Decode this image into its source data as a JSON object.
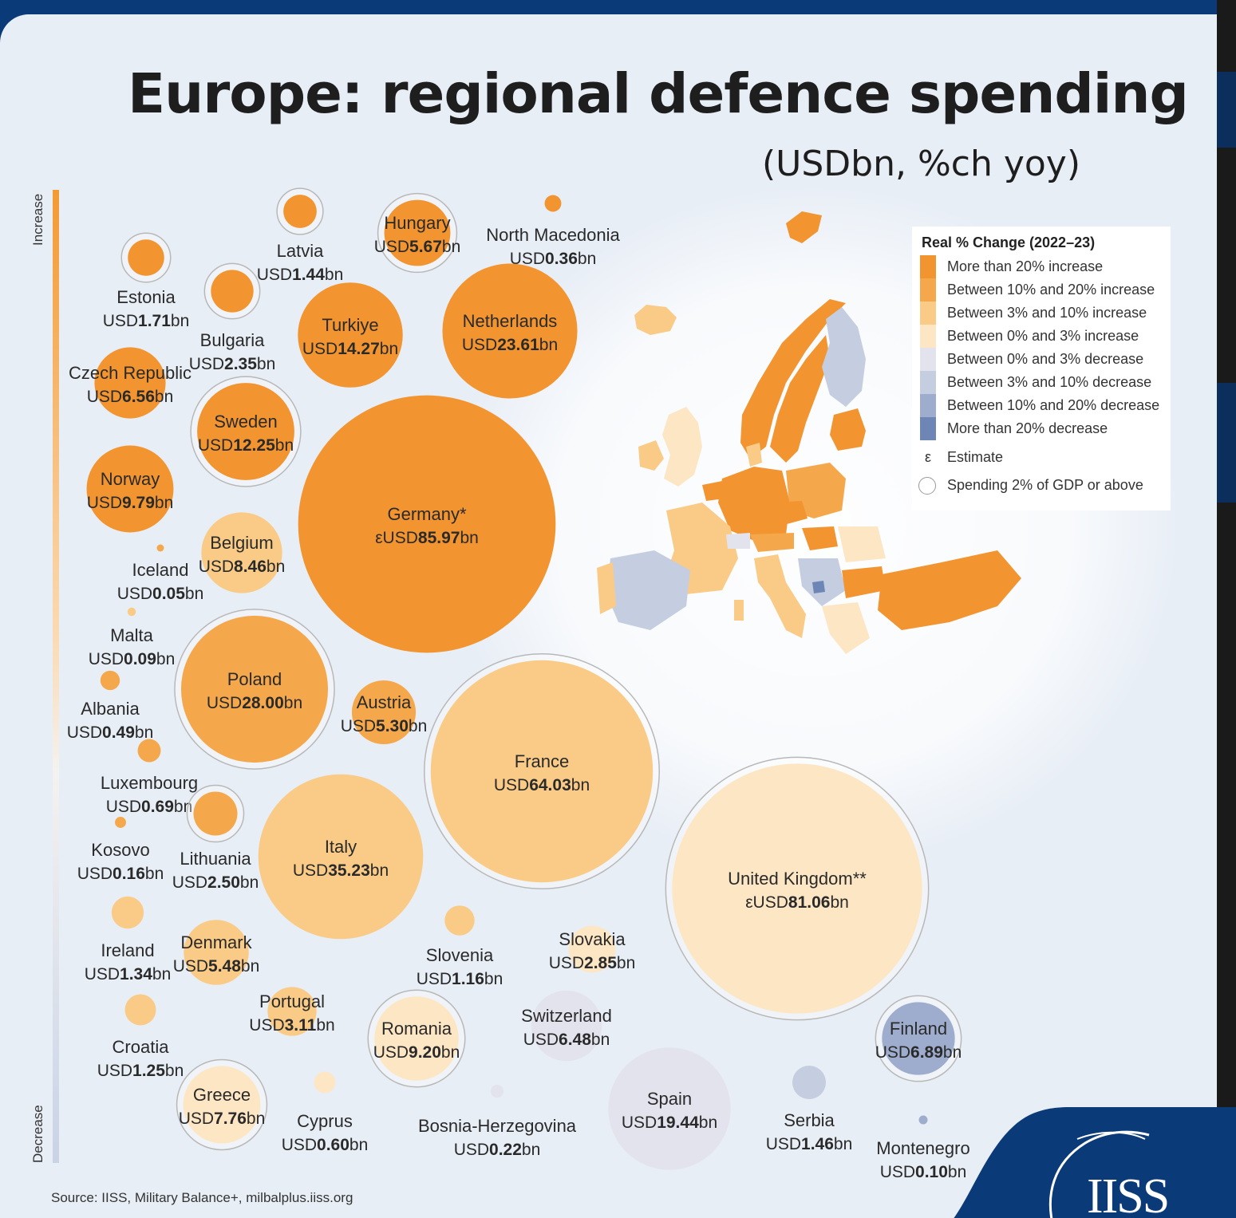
{
  "title": "Europe: regional defence spending",
  "subtitle": "(USDbn, %ch yoy)",
  "scale": {
    "top": "Increase",
    "bottom": "Decrease"
  },
  "legend": {
    "title": "Real % Change (2022–23)",
    "items": [
      {
        "label": "More than 20% increase",
        "color": "#f29430"
      },
      {
        "label": "Between 10% and 20% increase",
        "color": "#f5a84b"
      },
      {
        "label": "Between 3% and 10% increase",
        "color": "#f9cb87"
      },
      {
        "label": "Between 0% and 3% increase",
        "color": "#fde6c4"
      },
      {
        "label": "Between 0% and 3% decrease",
        "color": "#e3e3ee"
      },
      {
        "label": "Between 3% and 10% decrease",
        "color": "#c5cde0"
      },
      {
        "label": "Between 10% and 20% decrease",
        "color": "#9eadcd"
      },
      {
        "label": "More than 20% decrease",
        "color": "#6e86b6"
      }
    ],
    "estimate_symbol": "ε",
    "estimate_label": "Estimate",
    "gdp_label": "Spending 2% of GDP or above"
  },
  "source": "Source: IISS, Military Balance+, milbalplus.iiss.org",
  "brand": "IISS",
  "chart_data": {
    "type": "bubble",
    "title": "Europe: regional defence spending",
    "subtitle": "(USDbn, %ch yoy)",
    "size_variable": "Defence spending (USD bn)",
    "color_variable": "Real % change 2022–23 (category)",
    "series": [
      {
        "name": "Latvia",
        "prefix": "USD",
        "value": 1.44,
        "value_label": "1.44",
        "category": "More than 20% increase",
        "gdp2": true
      },
      {
        "name": "Hungary",
        "prefix": "USD",
        "value": 5.67,
        "value_label": "5.67",
        "category": "More than 20% increase",
        "gdp2": true
      },
      {
        "name": "North Macedonia",
        "prefix": "USD",
        "value": 0.36,
        "value_label": "0.36",
        "category": "More than 20% increase",
        "gdp2": false
      },
      {
        "name": "Estonia",
        "prefix": "USD",
        "value": 1.71,
        "value_label": "1.71",
        "category": "More than 20% increase",
        "gdp2": true
      },
      {
        "name": "Bulgaria",
        "prefix": "USD",
        "value": 2.35,
        "value_label": "2.35",
        "category": "More than 20% increase",
        "gdp2": true
      },
      {
        "name": "Turkiye",
        "prefix": "USD",
        "value": 14.27,
        "value_label": "14.27",
        "category": "More than 20% increase",
        "gdp2": false
      },
      {
        "name": "Netherlands",
        "prefix": "USD",
        "value": 23.61,
        "value_label": "23.61",
        "category": "More than 20% increase",
        "gdp2": false
      },
      {
        "name": "Czech Republic",
        "prefix": "USD",
        "value": 6.56,
        "value_label": "6.56",
        "category": "More than 20% increase",
        "gdp2": false
      },
      {
        "name": "Sweden",
        "prefix": "USD",
        "value": 12.25,
        "value_label": "12.25",
        "category": "More than 20% increase",
        "gdp2": true
      },
      {
        "name": "Norway",
        "prefix": "USD",
        "value": 9.79,
        "value_label": "9.79",
        "category": "More than 20% increase",
        "gdp2": false
      },
      {
        "name": "Germany*",
        "prefix": "εUSD",
        "value": 85.97,
        "value_label": "85.97",
        "category": "More than 20% increase",
        "gdp2": false
      },
      {
        "name": "Iceland",
        "prefix": "USD",
        "value": 0.05,
        "value_label": "0.05",
        "category": "Between 10% and 20% increase",
        "gdp2": false
      },
      {
        "name": "Belgium",
        "prefix": "USD",
        "value": 8.46,
        "value_label": "8.46",
        "category": "Between 3% and 10% increase",
        "gdp2": false
      },
      {
        "name": "Malta",
        "prefix": "USD",
        "value": 0.09,
        "value_label": "0.09",
        "category": "Between 3% and 10% increase",
        "gdp2": false
      },
      {
        "name": "Poland",
        "prefix": "USD",
        "value": 28.0,
        "value_label": "28.00",
        "category": "Between 10% and 20% increase",
        "gdp2": true
      },
      {
        "name": "Austria",
        "prefix": "USD",
        "value": 5.3,
        "value_label": "5.30",
        "category": "Between 10% and 20% increase",
        "gdp2": false
      },
      {
        "name": "Albania",
        "prefix": "USD",
        "value": 0.49,
        "value_label": "0.49",
        "category": "Between 10% and 20% increase",
        "gdp2": false
      },
      {
        "name": "Luxembourg",
        "prefix": "USD",
        "value": 0.69,
        "value_label": "0.69",
        "category": "Between 10% and 20% increase",
        "gdp2": false
      },
      {
        "name": "France",
        "prefix": "USD",
        "value": 64.03,
        "value_label": "64.03",
        "category": "Between 3% and 10% increase",
        "gdp2": true
      },
      {
        "name": "Kosovo",
        "prefix": "USD",
        "value": 0.16,
        "value_label": "0.16",
        "category": "Between 10% and 20% increase",
        "gdp2": false
      },
      {
        "name": "Lithuania",
        "prefix": "USD",
        "value": 2.5,
        "value_label": "2.50",
        "category": "Between 10% and 20% increase",
        "gdp2": true
      },
      {
        "name": "Italy",
        "prefix": "USD",
        "value": 35.23,
        "value_label": "35.23",
        "category": "Between 3% and 10% increase",
        "gdp2": false
      },
      {
        "name": "United Kingdom**",
        "prefix": "εUSD",
        "value": 81.06,
        "value_label": "81.06",
        "category": "Between 0% and 3% increase",
        "gdp2": true
      },
      {
        "name": "Ireland",
        "prefix": "USD",
        "value": 1.34,
        "value_label": "1.34",
        "category": "Between 3% and 10% increase",
        "gdp2": false
      },
      {
        "name": "Denmark",
        "prefix": "USD",
        "value": 5.48,
        "value_label": "5.48",
        "category": "Between 3% and 10% increase",
        "gdp2": false
      },
      {
        "name": "Slovenia",
        "prefix": "USD",
        "value": 1.16,
        "value_label": "1.16",
        "category": "Between 3% and 10% increase",
        "gdp2": false
      },
      {
        "name": "Slovakia",
        "prefix": "USD",
        "value": 2.85,
        "value_label": "2.85",
        "category": "Between 0% and 3% increase",
        "gdp2": false
      },
      {
        "name": "Portugal",
        "prefix": "USD",
        "value": 3.11,
        "value_label": "3.11",
        "category": "Between 3% and 10% increase",
        "gdp2": false
      },
      {
        "name": "Croatia",
        "prefix": "USD",
        "value": 1.25,
        "value_label": "1.25",
        "category": "Between 3% and 10% increase",
        "gdp2": false
      },
      {
        "name": "Romania",
        "prefix": "USD",
        "value": 9.2,
        "value_label": "9.20",
        "category": "Between 0% and 3% increase",
        "gdp2": true
      },
      {
        "name": "Switzerland",
        "prefix": "USD",
        "value": 6.48,
        "value_label": "6.48",
        "category": "Between 0% and 3% decrease",
        "gdp2": false
      },
      {
        "name": "Finland",
        "prefix": "USD",
        "value": 6.89,
        "value_label": "6.89",
        "category": "Between 10% and 20% decrease",
        "gdp2": true
      },
      {
        "name": "Greece",
        "prefix": "USD",
        "value": 7.76,
        "value_label": "7.76",
        "category": "Between 0% and 3% increase",
        "gdp2": true
      },
      {
        "name": "Cyprus",
        "prefix": "USD",
        "value": 0.6,
        "value_label": "0.60",
        "category": "Between 0% and 3% increase",
        "gdp2": false
      },
      {
        "name": "Bosnia-Herzegovina",
        "prefix": "USD",
        "value": 0.22,
        "value_label": "0.22",
        "category": "Between 0% and 3% decrease",
        "gdp2": false
      },
      {
        "name": "Spain",
        "prefix": "USD",
        "value": 19.44,
        "value_label": "19.44",
        "category": "Between 0% and 3% decrease",
        "gdp2": false
      },
      {
        "name": "Serbia",
        "prefix": "USD",
        "value": 1.46,
        "value_label": "1.46",
        "category": "Between 3% and 10% decrease",
        "gdp2": false
      },
      {
        "name": "Montenegro",
        "prefix": "USD",
        "value": 0.1,
        "value_label": "0.10",
        "category": "Between 10% and 20% decrease",
        "gdp2": false
      }
    ]
  }
}
